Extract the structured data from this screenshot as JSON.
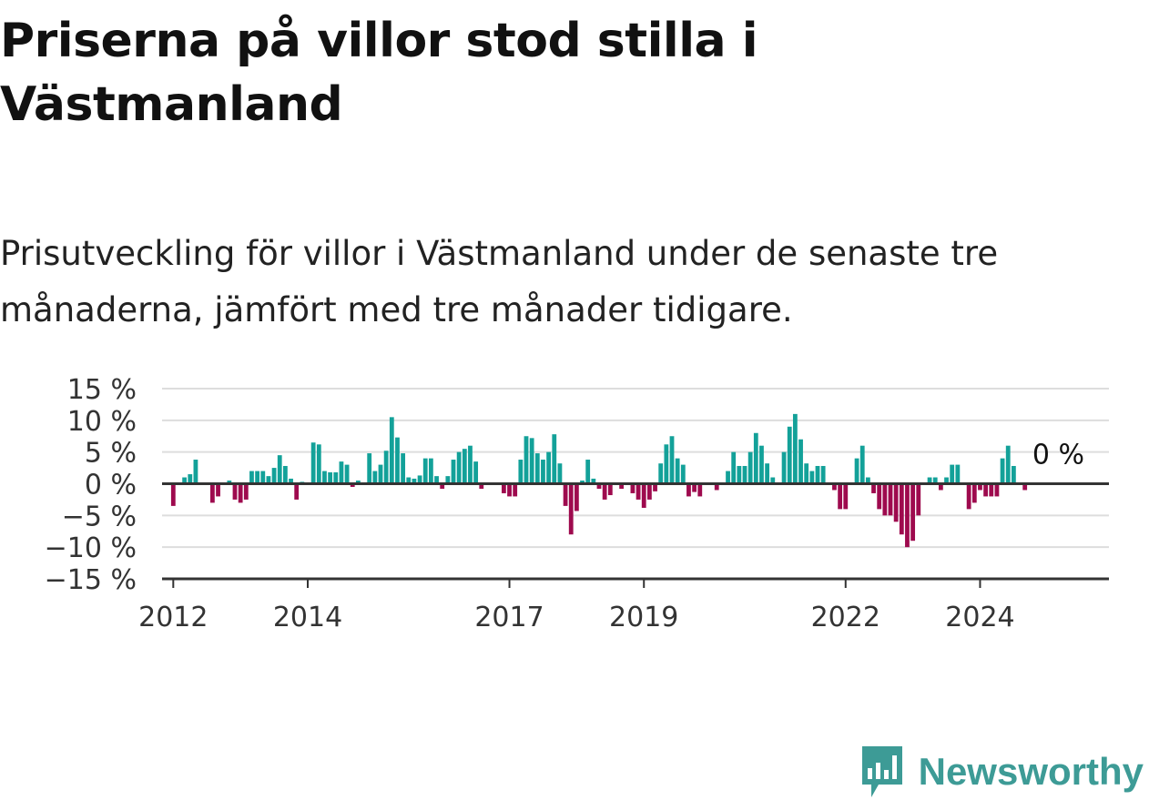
{
  "title": "Priserna på villor stod stilla i Västmanland",
  "subtitle": "Prisutveckling för villor i Västmanland under de senaste tre månaderna, jämfört med tre månader tidigare.",
  "brand": "Newsworthy",
  "colors": {
    "positive": "#13a199",
    "negative": "#9e0a4e",
    "grid": "#dddddd",
    "axis": "#333333",
    "brand": "#3d9b96"
  },
  "chart_data": {
    "type": "bar",
    "title": "",
    "xlabel": "",
    "ylabel": "",
    "ylim": [
      -15,
      15
    ],
    "yticks": [
      15,
      10,
      5,
      0,
      -5,
      -10,
      -15
    ],
    "ytick_labels": [
      "15 %",
      "10 %",
      "5 %",
      "0 %",
      "−5 %",
      "−10 %",
      "−15 %"
    ],
    "xticks": [
      "2012-01",
      "2014-01",
      "2017-01",
      "2019-01",
      "2022-01",
      "2024-01"
    ],
    "xtick_labels": [
      "2012",
      "2014",
      "2017",
      "2019",
      "2022",
      "2024"
    ],
    "x_start": "2011-11",
    "x_end": "2025-12",
    "annotation": {
      "text": "0 %",
      "x": "2024-10",
      "y": 0
    },
    "series": [
      {
        "x": [
          "2012-01",
          "2012-02",
          "2012-03",
          "2012-04",
          "2012-05",
          "2012-06",
          "2012-07",
          "2012-08",
          "2012-09",
          "2012-10",
          "2012-11",
          "2012-12",
          "2013-01",
          "2013-02",
          "2013-03",
          "2013-04",
          "2013-05",
          "2013-06",
          "2013-07",
          "2013-08",
          "2013-09",
          "2013-10",
          "2013-11",
          "2013-12",
          "2014-01",
          "2014-02",
          "2014-03",
          "2014-04",
          "2014-05",
          "2014-06",
          "2014-07",
          "2014-08",
          "2014-09",
          "2014-10",
          "2014-11",
          "2014-12",
          "2015-01",
          "2015-02",
          "2015-03",
          "2015-04",
          "2015-05",
          "2015-06",
          "2015-07",
          "2015-08",
          "2015-09",
          "2015-10",
          "2015-11",
          "2015-12",
          "2016-01",
          "2016-02",
          "2016-03",
          "2016-04",
          "2016-05",
          "2016-06",
          "2016-07",
          "2016-08",
          "2016-09",
          "2016-10",
          "2016-11",
          "2016-12",
          "2017-01",
          "2017-02",
          "2017-03",
          "2017-04",
          "2017-05",
          "2017-06",
          "2017-07",
          "2017-08",
          "2017-09",
          "2017-10",
          "2017-11",
          "2017-12",
          "2018-01",
          "2018-02",
          "2018-03",
          "2018-04",
          "2018-05",
          "2018-06",
          "2018-07",
          "2018-08",
          "2018-09",
          "2018-10",
          "2018-11",
          "2018-12",
          "2019-01",
          "2019-02",
          "2019-03",
          "2019-04",
          "2019-05",
          "2019-06",
          "2019-07",
          "2019-08",
          "2019-09",
          "2019-10",
          "2019-11",
          "2019-12",
          "2020-01",
          "2020-02",
          "2020-03",
          "2020-04",
          "2020-05",
          "2020-06",
          "2020-07",
          "2020-08",
          "2020-09",
          "2020-10",
          "2020-11",
          "2020-12",
          "2021-01",
          "2021-02",
          "2021-03",
          "2021-04",
          "2021-05",
          "2021-06",
          "2021-07",
          "2021-08",
          "2021-09",
          "2021-10",
          "2021-11",
          "2021-12",
          "2022-01",
          "2022-02",
          "2022-03",
          "2022-04",
          "2022-05",
          "2022-06",
          "2022-07",
          "2022-08",
          "2022-09",
          "2022-10",
          "2022-11",
          "2022-12",
          "2023-01",
          "2023-02",
          "2023-03",
          "2023-04",
          "2023-05",
          "2023-06",
          "2023-07",
          "2023-08",
          "2023-09",
          "2023-10",
          "2023-11",
          "2023-12",
          "2024-01",
          "2024-02",
          "2024-03",
          "2024-04",
          "2024-05",
          "2024-06",
          "2024-07",
          "2024-08",
          "2024-09",
          "2024-10",
          "2024-11",
          "2024-12",
          "2025-01",
          "2025-02"
        ],
        "values": [
          -3.5,
          0,
          1,
          1.5,
          3.8,
          0,
          0,
          -3,
          -2,
          0,
          0.5,
          -2.5,
          -3,
          -2.5,
          2,
          2,
          2,
          1.2,
          2.5,
          4.5,
          2.8,
          0.8,
          -2.5,
          0.3,
          0,
          6.5,
          6.2,
          2,
          1.8,
          1.8,
          3.5,
          3,
          -0.5,
          0.5,
          0,
          4.8,
          2,
          3,
          5.2,
          10.5,
          7.3,
          4.8,
          1,
          0.8,
          1.3,
          4,
          4,
          1.2,
          -0.8,
          1.2,
          3.8,
          5,
          5.5,
          6,
          3.5,
          -0.8,
          0,
          0.2,
          0,
          -1.5,
          -2,
          -2,
          3.8,
          7.5,
          7.2,
          4.8,
          3.8,
          5,
          7.8,
          3.2,
          -3.5,
          -8,
          -4.3,
          0.5,
          3.8,
          0.8,
          -0.8,
          -2.5,
          -1.8,
          0,
          -0.8,
          0,
          -1.5,
          -2.5,
          -3.8,
          -2.5,
          -1.2,
          3.2,
          6.2,
          7.5,
          4,
          3,
          -2,
          -1.3,
          -2,
          0,
          0,
          -1,
          0,
          2,
          5,
          2.8,
          2.8,
          5,
          8,
          6,
          3.2,
          1,
          0,
          5,
          9,
          11,
          7,
          3.2,
          2,
          2.8,
          2.8,
          0,
          -1,
          -4,
          -4,
          0,
          4,
          6,
          1,
          -1.5,
          -4,
          -5,
          -5,
          -6,
          -8,
          -10,
          -9,
          -5,
          0,
          1,
          1,
          -1,
          1,
          3,
          3,
          0,
          -4,
          -3,
          -1,
          -2,
          -2,
          -2,
          4,
          6,
          2.8,
          0,
          -1,
          0,
          0,
          0,
          0,
          0
        ]
      }
    ]
  }
}
